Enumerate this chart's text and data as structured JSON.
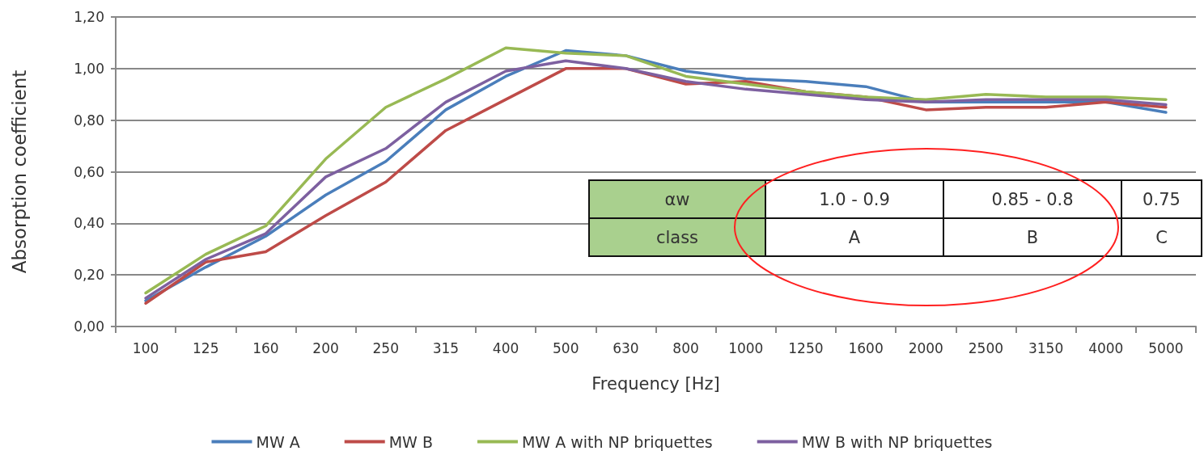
{
  "chart_data": {
    "type": "line",
    "xlabel": "Frequency [Hz]",
    "ylabel": "Absorption coefficient",
    "categories": [
      "100",
      "125",
      "160",
      "200",
      "250",
      "315",
      "400",
      "500",
      "630",
      "800",
      "1000",
      "1250",
      "1600",
      "2000",
      "2500",
      "3150",
      "4000",
      "5000"
    ],
    "series": [
      {
        "name": "MW A",
        "color": "#4a7ebb",
        "values": [
          0.1,
          0.23,
          0.35,
          0.51,
          0.64,
          0.84,
          0.97,
          1.07,
          1.05,
          0.99,
          0.96,
          0.95,
          0.93,
          0.87,
          0.87,
          0.87,
          0.87,
          0.83
        ]
      },
      {
        "name": "MW B",
        "color": "#be4b48",
        "values": [
          0.09,
          0.25,
          0.29,
          0.43,
          0.56,
          0.76,
          0.88,
          1.0,
          1.0,
          0.94,
          0.95,
          0.91,
          0.89,
          0.84,
          0.85,
          0.85,
          0.87,
          0.85
        ]
      },
      {
        "name": "MW A with NP briquettes",
        "color": "#98b954",
        "values": [
          0.13,
          0.28,
          0.39,
          0.65,
          0.85,
          0.96,
          1.08,
          1.06,
          1.05,
          0.97,
          0.94,
          0.91,
          0.89,
          0.88,
          0.9,
          0.89,
          0.89,
          0.88
        ]
      },
      {
        "name": "MW B with NP briquettes",
        "color": "#7d60a0",
        "values": [
          0.11,
          0.26,
          0.36,
          0.58,
          0.69,
          0.87,
          0.99,
          1.03,
          1.0,
          0.95,
          0.92,
          0.9,
          0.88,
          0.87,
          0.88,
          0.88,
          0.88,
          0.86
        ]
      }
    ],
    "ylim": [
      0,
      1.2
    ],
    "yticks": [
      {
        "value": 0,
        "label": "0,00"
      },
      {
        "value": 0.2,
        "label": "0,20"
      },
      {
        "value": 0.4,
        "label": "0,40"
      },
      {
        "value": 0.6,
        "label": "0,60"
      },
      {
        "value": 0.8,
        "label": "0,80"
      },
      {
        "value": 1.0,
        "label": "1,00"
      },
      {
        "value": 1.2,
        "label": "1,20"
      }
    ],
    "grid": "y",
    "legend": "bottom",
    "marker": "none",
    "line_style": "solid",
    "annotations": [
      "αw",
      "1.0 - 0.9",
      "0.85 - 0.8",
      "0.75",
      "class",
      "A",
      "B",
      "C"
    ]
  }
}
